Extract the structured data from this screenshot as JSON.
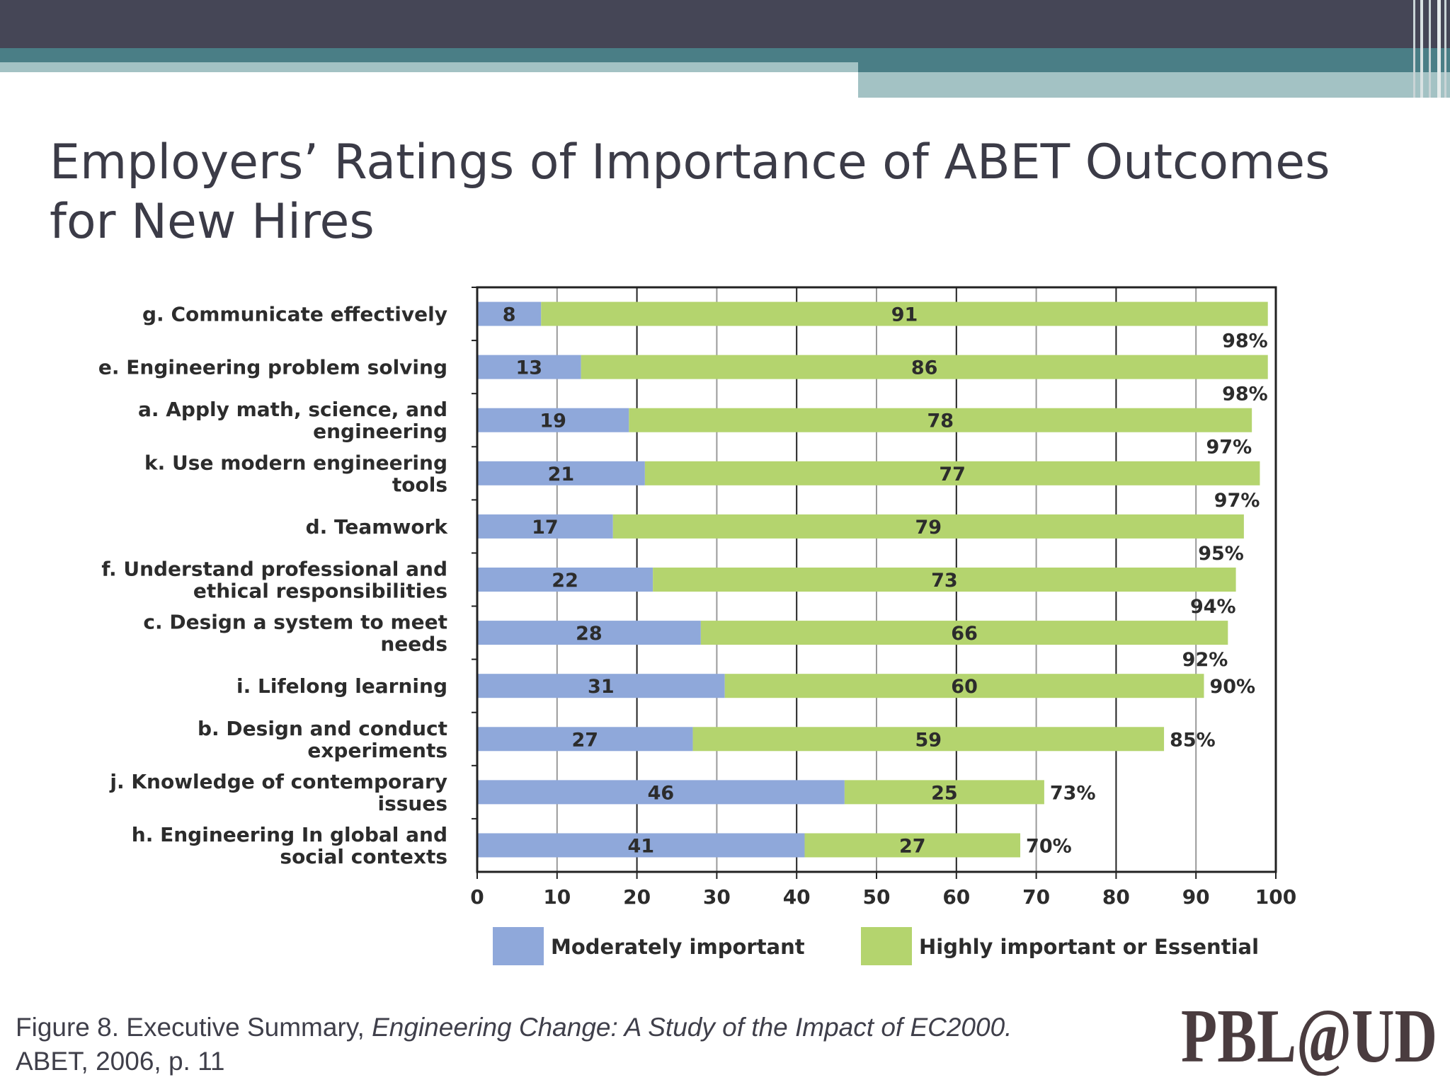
{
  "slide": {
    "title": "Employers’ Ratings of Importance of ABET Outcomes for New Hires",
    "caption": {
      "prefix": "Figure 8. Executive Summary, ",
      "italic_title": "Engineering Change: A Study of the Impact of EC2000.",
      "suffix": " ABET, 2006, p. 11"
    },
    "logo": {
      "text": "PBL@UD"
    }
  },
  "colors": {
    "header_dark": "#454656",
    "header_teal": "#4a7e86",
    "header_light": "#a3c2c4",
    "moderately": "#8fa8da",
    "highly": "#b4d46e",
    "title_text": "#3b3b47"
  },
  "chart_data": {
    "type": "bar",
    "orientation": "horizontal",
    "stacked": true,
    "categories": [
      [
        "g.  Communicate effectively"
      ],
      [
        "e.  Engineering problem solving"
      ],
      [
        "a. Apply math, science, and",
        "engineering"
      ],
      [
        "k. Use modern engineering",
        "tools"
      ],
      [
        "d. Teamwork"
      ],
      [
        "f. Understand professional and",
        "ethical responsibilities"
      ],
      [
        "c. Design a system to meet",
        "needs"
      ],
      [
        "i. Lifelong learning"
      ],
      [
        "b. Design and conduct",
        "experiments"
      ],
      [
        "j. Knowledge of contemporary",
        "issues"
      ],
      [
        "h. Engineering In global and",
        "social contexts"
      ]
    ],
    "series": [
      {
        "name": "Moderately important",
        "values": [
          8,
          13,
          19,
          21,
          17,
          22,
          28,
          31,
          27,
          46,
          41
        ]
      },
      {
        "name": "Highly important or Essential",
        "values": [
          91,
          86,
          78,
          77,
          79,
          73,
          66,
          60,
          59,
          25,
          27
        ]
      }
    ],
    "totals": [
      "98%",
      "98%",
      "97%",
      "97%",
      "95%",
      "94%",
      "92%",
      "90%",
      "85%",
      "73%",
      "70%"
    ],
    "xlim": [
      0,
      100
    ],
    "xticks": [
      0,
      10,
      20,
      30,
      40,
      50,
      60,
      70,
      80,
      90,
      100
    ],
    "grid": true,
    "legend": "bottom"
  }
}
